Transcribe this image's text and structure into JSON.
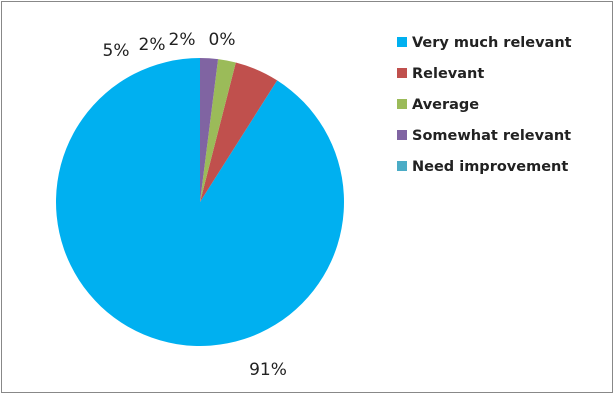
{
  "chart_data": {
    "type": "pie",
    "title": "",
    "categories": [
      "Very much relevant",
      "Relevant",
      "Average",
      "Somewhat relevant",
      "Need improvement"
    ],
    "values": [
      91,
      5,
      2,
      2,
      0
    ],
    "data_labels": [
      "91%",
      "5%",
      "2%",
      "2%",
      "0%"
    ],
    "colors": [
      "#00b0f0",
      "#c0504d",
      "#9bbb59",
      "#8064a2",
      "#4bacc6"
    ],
    "legend": {
      "position": "right",
      "entries": [
        "Very much relevant",
        "Relevant",
        "Average",
        "Somewhat relevant",
        "Need improvement"
      ]
    },
    "start_angle": "12 o'clock",
    "direction": "counterclockwise"
  }
}
